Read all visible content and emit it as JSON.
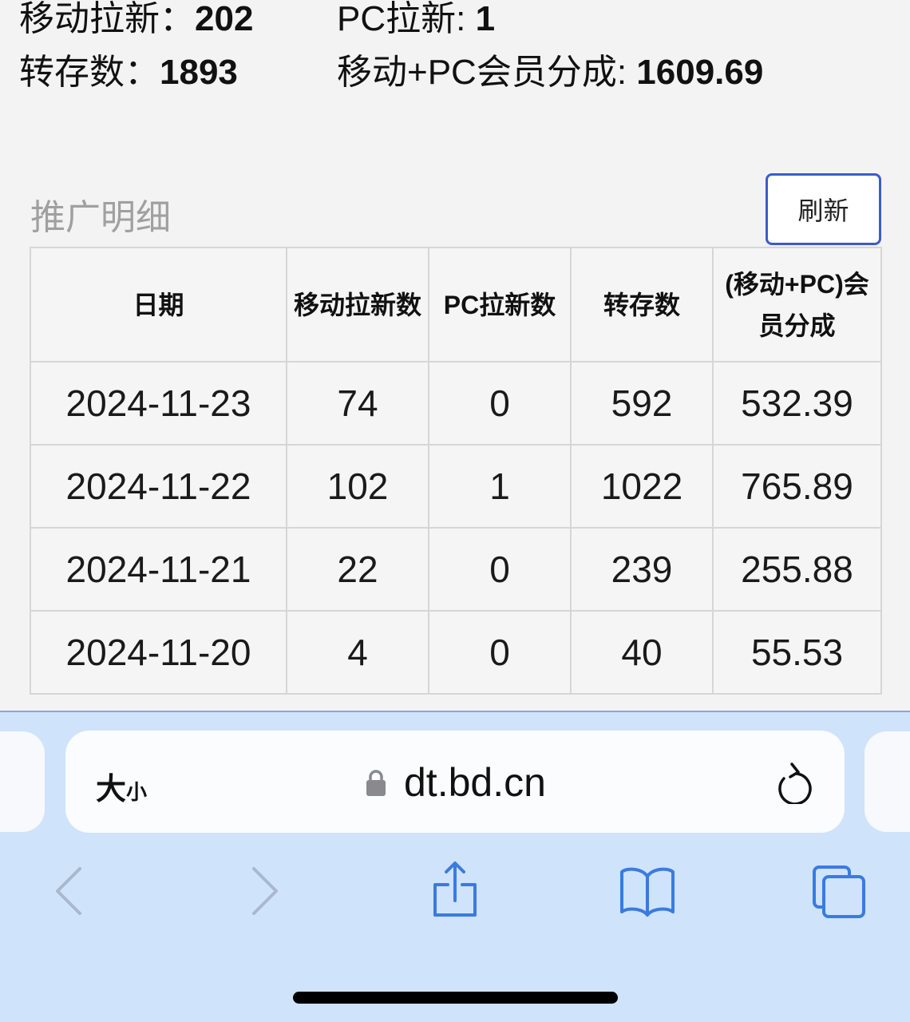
{
  "summary": {
    "mobile_new_label": "移动拉新：",
    "mobile_new_value": "202",
    "pc_new_label": "PC拉新: ",
    "pc_new_value": "1",
    "saves_label": "转存数：",
    "saves_value": "1893",
    "revenue_label": "移动+PC会员分成: ",
    "revenue_value": "1609.69"
  },
  "section": {
    "title": "推广明细",
    "refresh_label": "刷新"
  },
  "table": {
    "headers": [
      "日期",
      "移动拉新数",
      "PC拉新数",
      "转存数",
      "(移动+PC)会员分成"
    ],
    "rows": [
      [
        "2024-11-23",
        "74",
        "0",
        "592",
        "532.39"
      ],
      [
        "2024-11-22",
        "102",
        "1",
        "1022",
        "765.89"
      ],
      [
        "2024-11-21",
        "22",
        "0",
        "239",
        "255.88"
      ],
      [
        "2024-11-20",
        "4",
        "0",
        "40",
        "55.53"
      ]
    ]
  },
  "browser": {
    "text_size_label": "大",
    "text_size_small": "小",
    "host": "dt.bd.cn",
    "accent": "#3a7be0"
  }
}
